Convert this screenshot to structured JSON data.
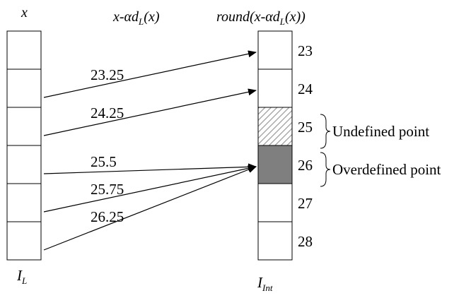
{
  "headers": {
    "x_prefix": "x",
    "middle": {
      "prefix": "x-",
      "alpha": "α",
      "d": "d",
      "sub": "L",
      "suffix": "(x)"
    },
    "right": {
      "prefix": "round(x-",
      "alpha": "α",
      "d": "d",
      "sub": "L",
      "suffix": "(x))"
    }
  },
  "left_array": {
    "name_main": "I",
    "name_sub": "L",
    "cell_count": 6
  },
  "right_array": {
    "name_main": "I",
    "name_sub": "Int",
    "cells": [
      {
        "value": "23",
        "state": "normal"
      },
      {
        "value": "24",
        "state": "normal"
      },
      {
        "value": "25",
        "state": "undefined"
      },
      {
        "value": "26",
        "state": "overdefined"
      },
      {
        "value": "27",
        "state": "normal"
      },
      {
        "value": "28",
        "state": "normal"
      }
    ]
  },
  "mappings": [
    {
      "label": "23.25",
      "from_cell": 1,
      "to_cell": 0
    },
    {
      "label": "24.25",
      "from_cell": 2,
      "to_cell": 1
    },
    {
      "label": "25.5",
      "from_cell": 3,
      "to_cell": 3
    },
    {
      "label": "25.75",
      "from_cell": 4,
      "to_cell": 3
    },
    {
      "label": "26.25",
      "from_cell": 5,
      "to_cell": 3
    }
  ],
  "annotations": {
    "undefined": "Undefined point",
    "overdefined": "Overdefined point"
  },
  "colors": {
    "stroke": "#000000",
    "overdefined_fill": "#7f7f7f",
    "hatch": "#9a9a9a"
  }
}
